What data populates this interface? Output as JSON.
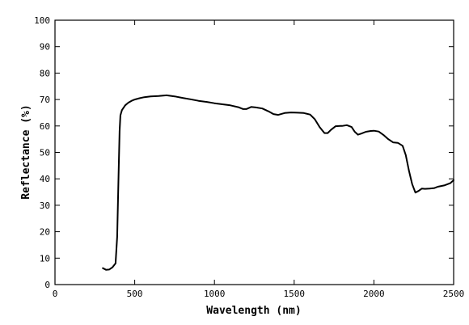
{
  "chart_data": {
    "type": "line",
    "title": "",
    "xlabel": "Wavelength (nm)",
    "ylabel": "Reflectance (%)",
    "xlim": [
      0,
      2500
    ],
    "ylim": [
      0,
      100
    ],
    "x_ticks": [
      0,
      500,
      1000,
      1500,
      2000,
      2500
    ],
    "y_ticks": [
      0,
      10,
      20,
      30,
      40,
      50,
      60,
      70,
      80,
      90,
      100
    ],
    "grid": false,
    "legend": "none",
    "series": [
      {
        "color": "#000000",
        "x": [
          300,
          320,
          340,
          360,
          380,
          390,
          400,
          405,
          410,
          420,
          440,
          460,
          480,
          500,
          530,
          560,
          600,
          650,
          700,
          750,
          800,
          850,
          900,
          950,
          1000,
          1050,
          1100,
          1150,
          1180,
          1200,
          1230,
          1260,
          1300,
          1340,
          1370,
          1400,
          1440,
          1480,
          1520,
          1560,
          1600,
          1630,
          1660,
          1690,
          1710,
          1730,
          1760,
          1790,
          1800,
          1830,
          1860,
          1880,
          1900,
          1920,
          1950,
          1980,
          2000,
          2030,
          2060,
          2090,
          2120,
          2150,
          2180,
          2200,
          2220,
          2240,
          2260,
          2280,
          2300,
          2320,
          2350,
          2380,
          2400,
          2440,
          2480,
          2500
        ],
        "y": [
          6.2,
          5.6,
          5.7,
          6.5,
          8,
          18,
          45,
          58,
          64,
          66,
          67.8,
          68.8,
          69.5,
          70,
          70.5,
          70.9,
          71.2,
          71.3,
          71.6,
          71.2,
          70.6,
          70.1,
          69.5,
          69.1,
          68.6,
          68.2,
          67.8,
          67.1,
          66.4,
          66.4,
          67.2,
          67,
          66.6,
          65.5,
          64.5,
          64.2,
          64.9,
          65.1,
          65,
          64.9,
          64.3,
          62.5,
          59.5,
          57.3,
          57.3,
          58.5,
          59.9,
          60,
          60,
          60.3,
          59.6,
          57.8,
          56.7,
          57.1,
          57.8,
          58.1,
          58.2,
          57.9,
          56.6,
          55,
          53.8,
          53.6,
          52.5,
          49,
          43,
          38,
          34.8,
          35.4,
          36.3,
          36.2,
          36.3,
          36.5,
          37,
          37.5,
          38.4,
          39.5
        ]
      }
    ]
  }
}
